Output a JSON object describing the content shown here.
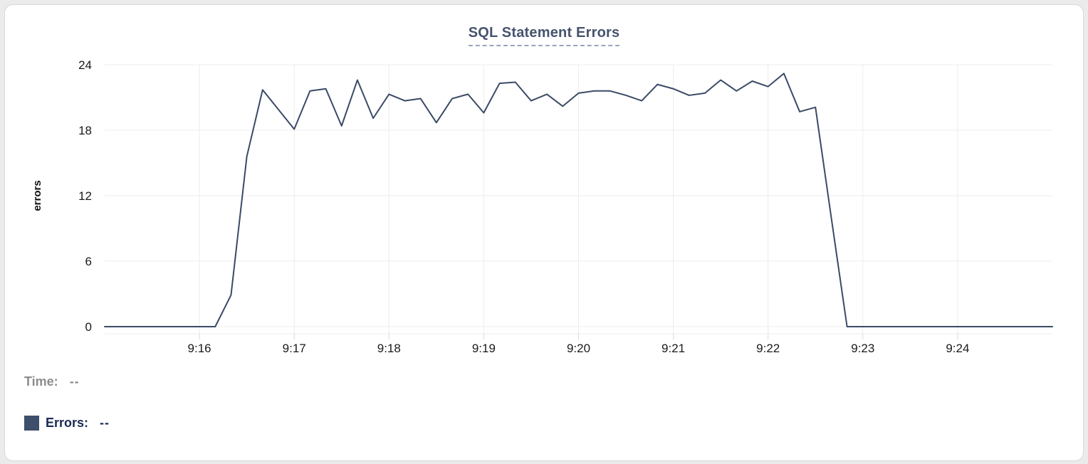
{
  "card": {
    "title": "SQL Statement Errors"
  },
  "tooltip": {
    "time_label": "Time:",
    "time_value": "--",
    "errors_label": "Errors:",
    "errors_value": "--"
  },
  "colors": {
    "line": "#3b4a66",
    "legend_swatch": "#3e4f6b",
    "title": "#47536e",
    "grid": "#ececec",
    "tick": "#d9d9d9",
    "axis_text": "#1a1a1a",
    "ylabel_text": "#111111",
    "time_muted": "#8c8c8c",
    "errors_text": "#1b2b55"
  },
  "chart_data": {
    "type": "line",
    "title": "SQL Statement Errors",
    "xlabel": "",
    "ylabel": "errors",
    "ylim": [
      0,
      24
    ],
    "yticks": [
      0,
      6,
      12,
      18,
      24
    ],
    "xticks": [
      "9:16",
      "9:17",
      "9:18",
      "9:19",
      "9:20",
      "9:21",
      "9:22",
      "9:23",
      "9:24"
    ],
    "x_start": "9:15:00",
    "x_end": "9:25:00",
    "interval_seconds": 10,
    "grid": true,
    "legend_position": "bottom-left",
    "series": [
      {
        "name": "Errors",
        "values": [
          0,
          0,
          0,
          0,
          0,
          0,
          0,
          0,
          2.9,
          15.6,
          21.7,
          19.9,
          18.1,
          21.6,
          21.8,
          18.4,
          22.6,
          19.1,
          21.3,
          20.7,
          20.9,
          18.7,
          20.9,
          21.3,
          19.6,
          22.3,
          22.4,
          20.7,
          21.3,
          20.2,
          21.4,
          21.6,
          21.6,
          21.2,
          20.7,
          22.2,
          21.8,
          21.2,
          21.4,
          22.6,
          21.6,
          22.5,
          22.0,
          23.2,
          19.7,
          20.1,
          10.0,
          0,
          0,
          0,
          0,
          0,
          0,
          0,
          0,
          0,
          0,
          0,
          0,
          0,
          0
        ]
      }
    ]
  }
}
